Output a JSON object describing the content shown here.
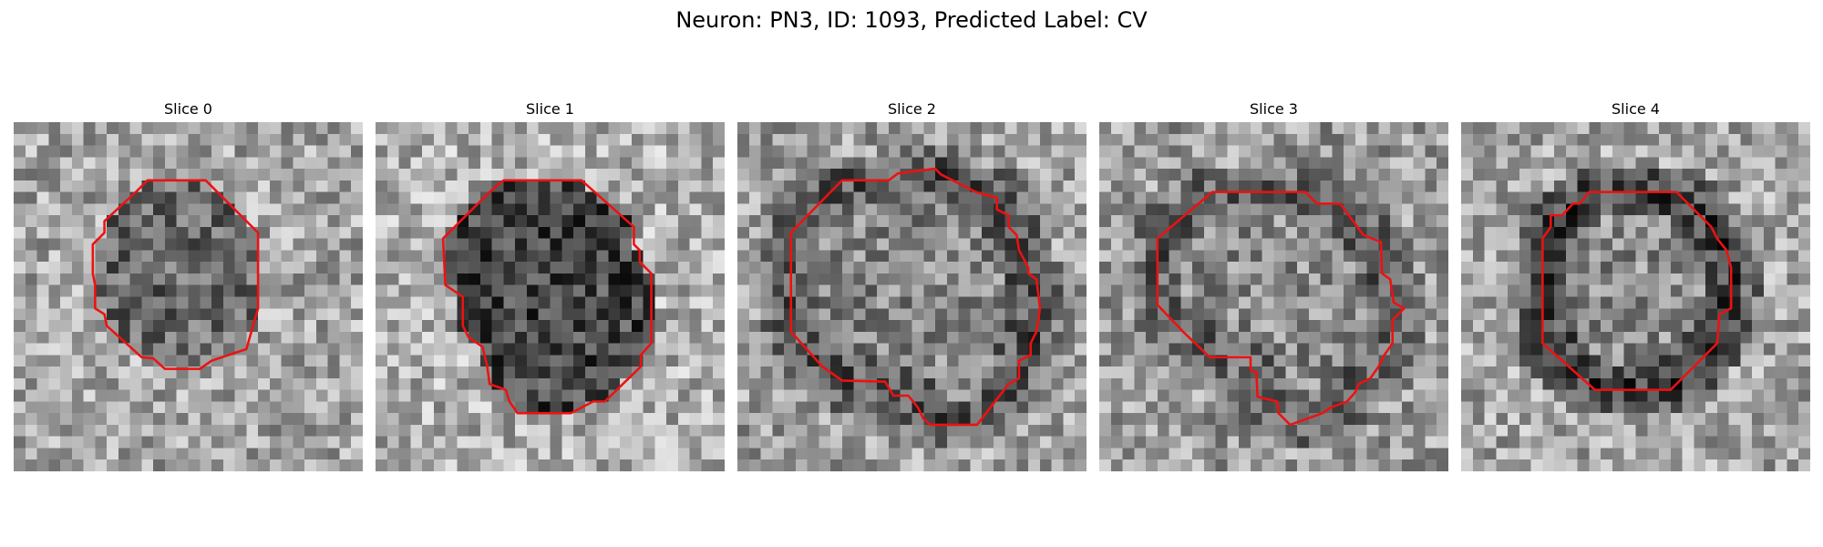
{
  "figure": {
    "suptitle": "Neuron: PN3, ID: 1093, Predicted Label: CV"
  },
  "contour_color": "#ee1111",
  "grid_size": 30,
  "slices": [
    {
      "title": "Slice 0",
      "seed": 11,
      "base_level": 150,
      "inner_level": 105,
      "ring_level": 0,
      "outer_level": 165,
      "contour": [
        [
          11.5,
          5
        ],
        [
          16.5,
          5
        ],
        [
          21,
          9.5
        ],
        [
          21,
          16
        ],
        [
          20,
          19.5
        ],
        [
          17,
          20.5
        ],
        [
          16,
          21.2
        ],
        [
          13,
          21.2
        ],
        [
          12,
          20.3
        ],
        [
          11,
          20.2
        ],
        [
          8,
          17.5
        ],
        [
          7.8,
          16.5
        ],
        [
          7,
          16
        ],
        [
          7,
          14
        ],
        [
          6.8,
          13
        ],
        [
          6.8,
          10.5
        ],
        [
          7.8,
          9.5
        ],
        [
          7.8,
          8.5
        ],
        [
          10.5,
          6
        ]
      ]
    },
    {
      "title": "Slice 1",
      "seed": 23,
      "base_level": 170,
      "inner_level": 70,
      "ring_level": 0,
      "outer_level": 175,
      "contour": [
        [
          11,
          5
        ],
        [
          17.7,
          5
        ],
        [
          22.2,
          9
        ],
        [
          22.2,
          10.5
        ],
        [
          22.7,
          11
        ],
        [
          22.7,
          12
        ],
        [
          23.7,
          13
        ],
        [
          23.7,
          19
        ],
        [
          22.8,
          20
        ],
        [
          22.8,
          21
        ],
        [
          19.7,
          24
        ],
        [
          18.7,
          24
        ],
        [
          16.8,
          25
        ],
        [
          12.2,
          25
        ],
        [
          11.5,
          24
        ],
        [
          11.2,
          23
        ],
        [
          9.8,
          22.5
        ],
        [
          9.6,
          21
        ],
        [
          9.2,
          19.3
        ],
        [
          8,
          18.5
        ],
        [
          7.5,
          17.5
        ],
        [
          7.5,
          15
        ],
        [
          6,
          14
        ],
        [
          5.8,
          10
        ],
        [
          9.8,
          6
        ]
      ]
    },
    {
      "title": "Slice 2",
      "seed": 37,
      "base_level": 155,
      "inner_level": 135,
      "ring_level": 80,
      "outer_level": 160,
      "contour": [
        [
          9,
          5
        ],
        [
          13,
          5
        ],
        [
          13.8,
          4.4
        ],
        [
          17,
          4
        ],
        [
          17.5,
          4.5
        ],
        [
          18.5,
          5
        ],
        [
          19.5,
          5.5
        ],
        [
          20.5,
          6
        ],
        [
          22.3,
          6.5
        ],
        [
          22.3,
          7.5
        ],
        [
          23.3,
          8
        ],
        [
          23.3,
          9
        ],
        [
          24,
          9.7
        ],
        [
          24.2,
          11
        ],
        [
          25,
          12.5
        ],
        [
          25,
          13
        ],
        [
          25.7,
          13.5
        ],
        [
          26,
          16
        ],
        [
          25.7,
          18
        ],
        [
          25.2,
          19
        ],
        [
          25.2,
          20
        ],
        [
          24.2,
          20.5
        ],
        [
          24.2,
          22
        ],
        [
          23.3,
          22.5
        ],
        [
          20.6,
          26
        ],
        [
          16.6,
          26
        ],
        [
          16,
          25.5
        ],
        [
          15.5,
          24.5
        ],
        [
          14.7,
          23.5
        ],
        [
          13.4,
          23.5
        ],
        [
          12.7,
          22.3
        ],
        [
          9,
          22.2
        ],
        [
          7.3,
          21
        ],
        [
          4.6,
          18
        ],
        [
          4.6,
          9.5
        ],
        [
          8,
          6
        ]
      ]
    },
    {
      "title": "Slice 3",
      "seed": 41,
      "base_level": 150,
      "inner_level": 140,
      "ring_level": 90,
      "outer_level": 155,
      "contour": [
        [
          9.7,
          6
        ],
        [
          17.7,
          6
        ],
        [
          18.7,
          7
        ],
        [
          20.7,
          7
        ],
        [
          22.7,
          9.7
        ],
        [
          24.2,
          10.3
        ],
        [
          24.3,
          13
        ],
        [
          25,
          13.5
        ],
        [
          25.3,
          15.5
        ],
        [
          26.2,
          16
        ],
        [
          25.2,
          17
        ],
        [
          25.2,
          19
        ],
        [
          24.5,
          20
        ],
        [
          24,
          21
        ],
        [
          23.3,
          22
        ],
        [
          22.3,
          22.5
        ],
        [
          22,
          23.2
        ],
        [
          21.3,
          24
        ],
        [
          19.9,
          24.5
        ],
        [
          19.2,
          25
        ],
        [
          16.4,
          26
        ],
        [
          15.4,
          25
        ],
        [
          15.3,
          24
        ],
        [
          13.6,
          23.6
        ],
        [
          13.5,
          21.5
        ],
        [
          13,
          21.3
        ],
        [
          13,
          20.2
        ],
        [
          9.5,
          20.2
        ],
        [
          7.2,
          18
        ],
        [
          5,
          15.7
        ],
        [
          5,
          10
        ]
      ]
    },
    {
      "title": "Slice 4",
      "seed": 53,
      "base_level": 175,
      "inner_level": 140,
      "ring_level": 55,
      "outer_level": 165,
      "contour": [
        [
          11,
          6
        ],
        [
          18.5,
          6
        ],
        [
          21.5,
          9
        ],
        [
          22,
          10
        ],
        [
          22.8,
          11
        ],
        [
          23.2,
          12.5
        ],
        [
          23.2,
          16
        ],
        [
          22.2,
          16.5
        ],
        [
          22,
          19
        ],
        [
          18,
          23
        ],
        [
          11.5,
          23
        ],
        [
          7,
          19
        ],
        [
          7,
          10
        ],
        [
          7.7,
          9
        ],
        [
          7.7,
          8
        ],
        [
          8.7,
          8
        ],
        [
          9.6,
          7
        ],
        [
          10.2,
          7
        ]
      ]
    }
  ]
}
